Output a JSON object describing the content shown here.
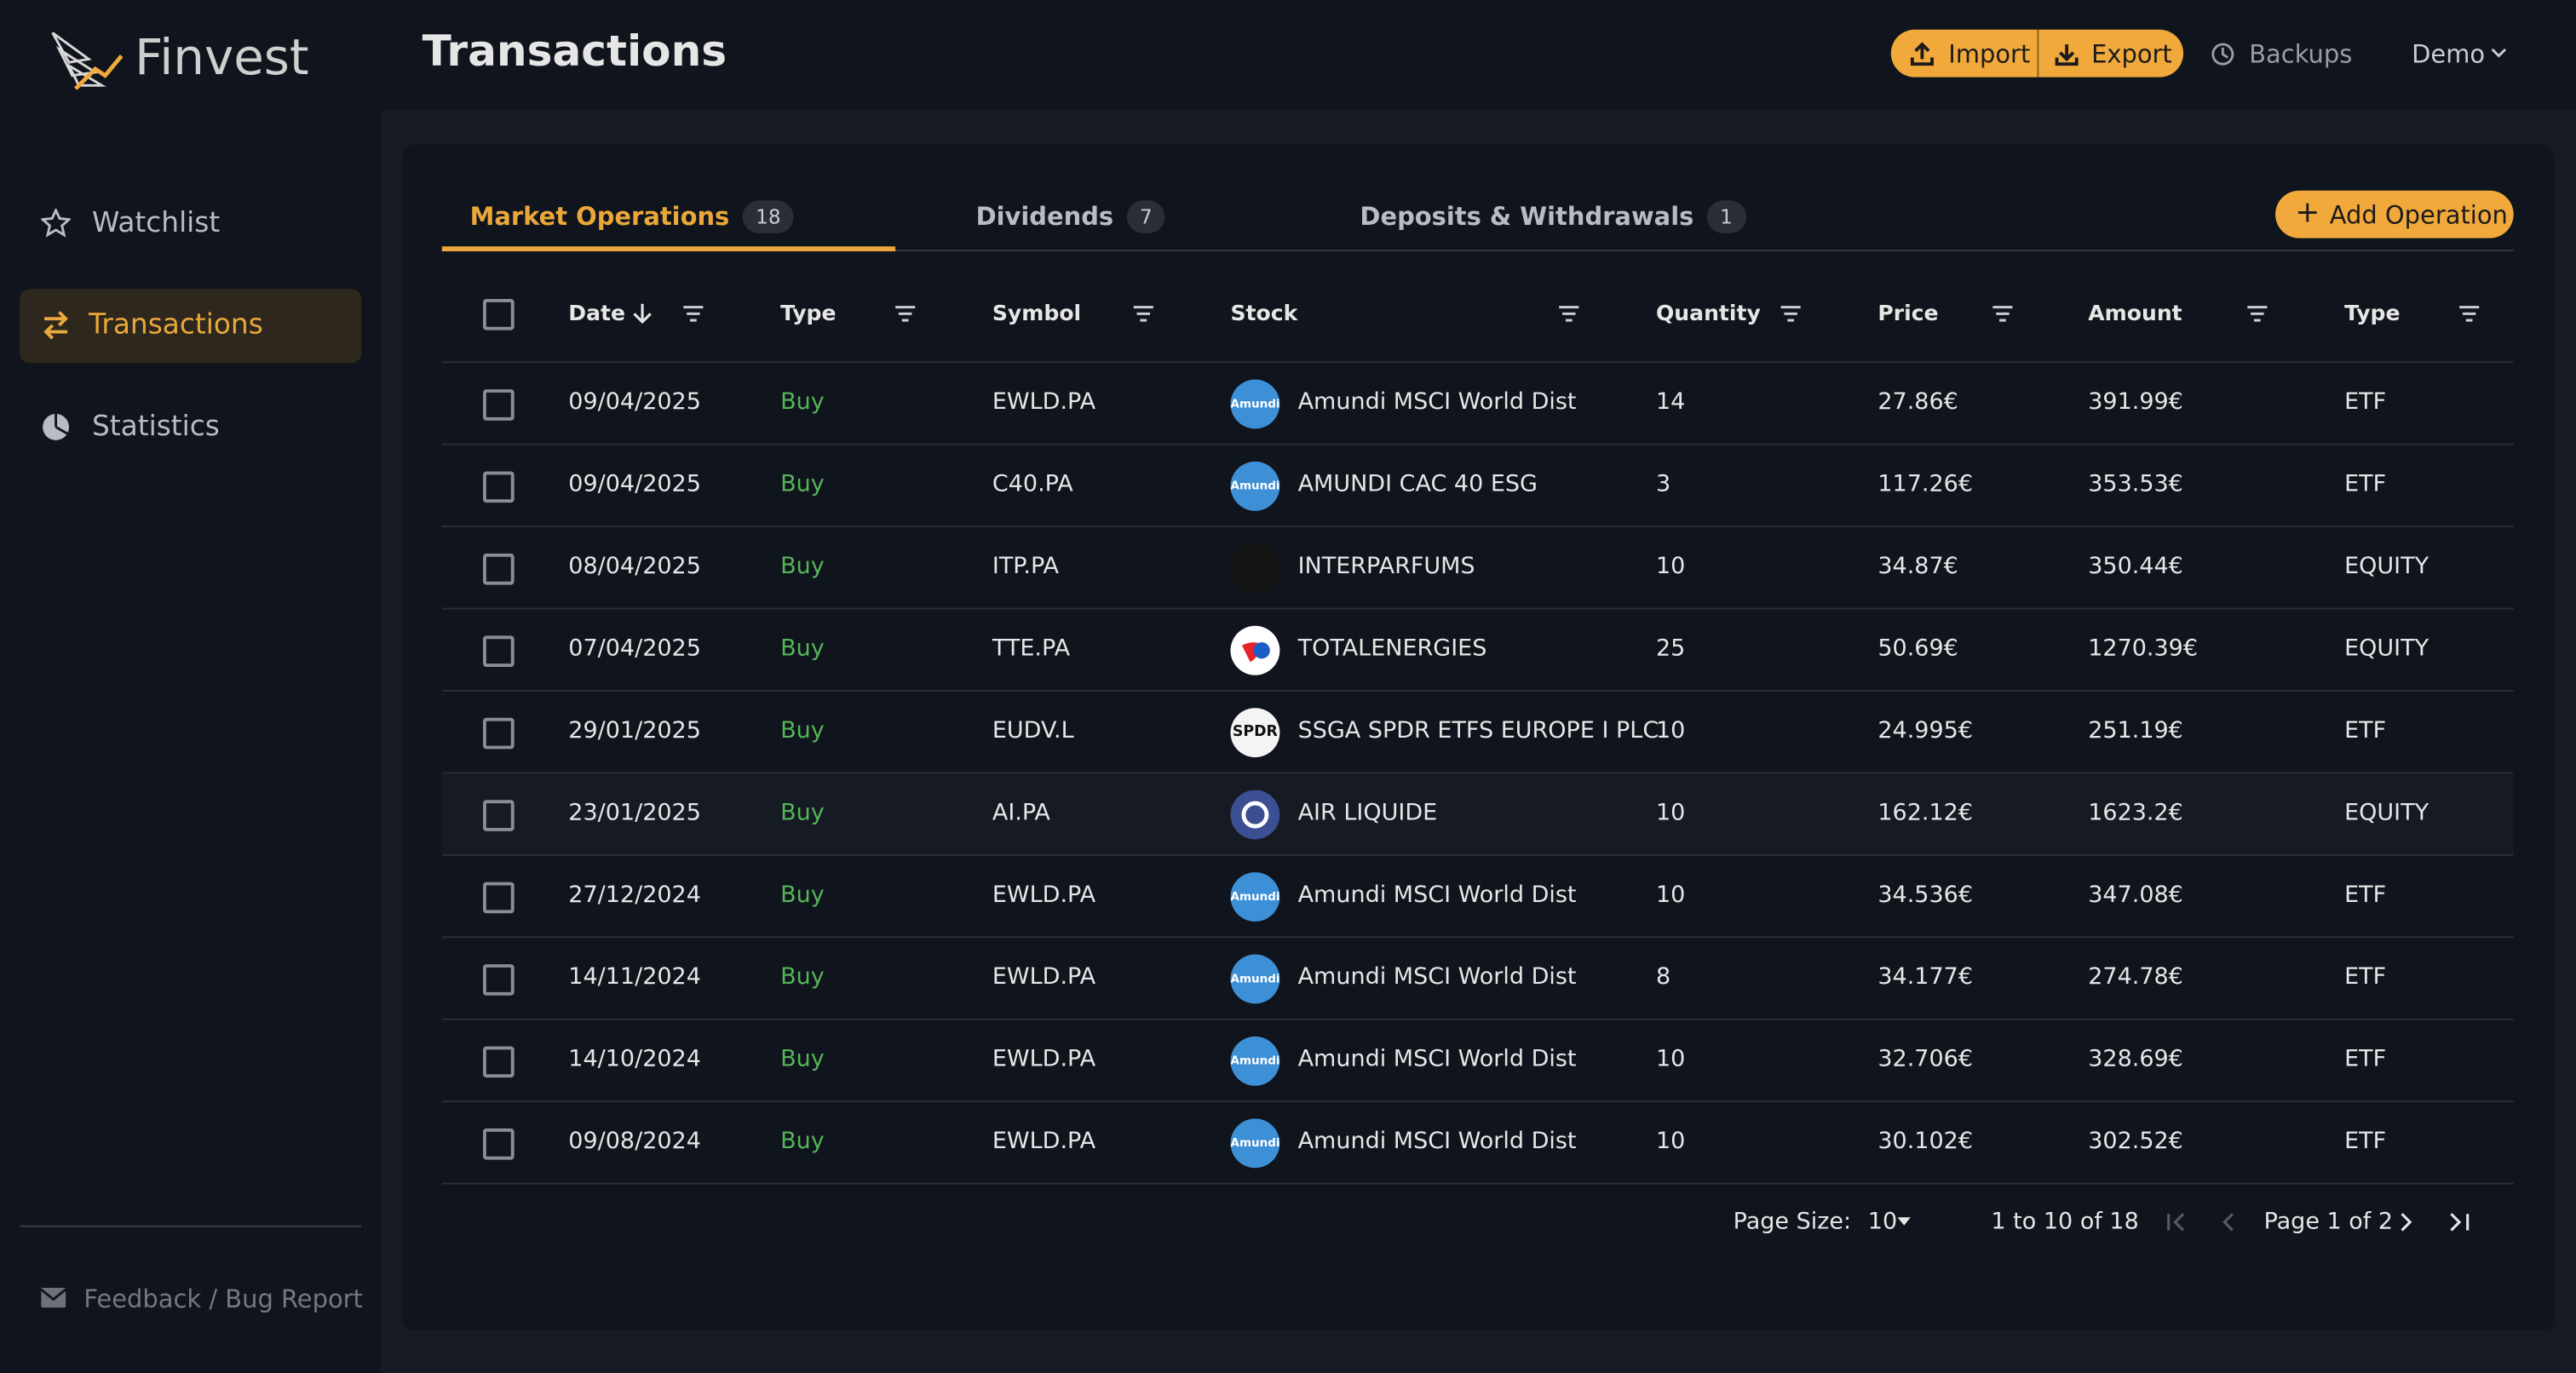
{
  "brand": "Finvest",
  "nav": [
    {
      "label": "Watchlist",
      "active": false
    },
    {
      "label": "Transactions",
      "active": true
    },
    {
      "label": "Statistics",
      "active": false
    }
  ],
  "feedback": "Feedback / Bug Report",
  "header": {
    "title": "Transactions",
    "import": "Import",
    "export": "Export",
    "backups": "Backups",
    "user": "Demo"
  },
  "tabs": [
    {
      "label": "Market Operations",
      "count": "18",
      "active": true
    },
    {
      "label": "Dividends",
      "count": "7",
      "active": false
    },
    {
      "label": "Deposits & Withdrawals",
      "count": "1",
      "active": false
    }
  ],
  "addButton": "Add Operation",
  "table": {
    "columns": [
      "Date",
      "Type",
      "Symbol",
      "Stock",
      "Quantity",
      "Price",
      "Amount",
      "Type"
    ],
    "rows": [
      {
        "date": "09/04/2025",
        "type": "Buy",
        "symbol": "EWLD.PA",
        "logo": "Amundi",
        "logoColor": "#3d8fd6",
        "stock": "Amundi MSCI World Dist",
        "quantity": "14",
        "price": "27.86€",
        "amount": "391.99€",
        "assetType": "ETF"
      },
      {
        "date": "09/04/2025",
        "type": "Buy",
        "symbol": "C40.PA",
        "logo": "Amundi",
        "logoColor": "#3d8fd6",
        "stock": "AMUNDI CAC 40 ESG",
        "quantity": "3",
        "price": "117.26€",
        "amount": "353.53€",
        "assetType": "ETF"
      },
      {
        "date": "08/04/2025",
        "type": "Buy",
        "symbol": "ITP.PA",
        "logoColor": "#141414",
        "stock": "INTERPARFUMS",
        "quantity": "10",
        "price": "34.87€",
        "amount": "350.44€",
        "assetType": "EQUITY"
      },
      {
        "date": "07/04/2025",
        "type": "Buy",
        "symbol": "TTE.PA",
        "logoColor": "#ffffff",
        "stock": "TOTALENERGIES",
        "quantity": "25",
        "price": "50.69€",
        "amount": "1270.39€",
        "assetType": "EQUITY"
      },
      {
        "date": "29/01/2025",
        "type": "Buy",
        "symbol": "EUDV.L",
        "logo": "SPDR",
        "logoColor": "#f4f4f4",
        "stock": "SSGA SPDR ETFS EUROPE I PLC",
        "quantity": "10",
        "price": "24.995€",
        "amount": "251.19€",
        "assetType": "ETF"
      },
      {
        "date": "23/01/2025",
        "type": "Buy",
        "symbol": "AI.PA",
        "logoColor": "#3c4f93",
        "stock": "AIR LIQUIDE",
        "quantity": "10",
        "price": "162.12€",
        "amount": "1623.2€",
        "assetType": "EQUITY"
      },
      {
        "date": "27/12/2024",
        "type": "Buy",
        "symbol": "EWLD.PA",
        "logo": "Amundi",
        "logoColor": "#3d8fd6",
        "stock": "Amundi MSCI World Dist",
        "quantity": "10",
        "price": "34.536€",
        "amount": "347.08€",
        "assetType": "ETF"
      },
      {
        "date": "14/11/2024",
        "type": "Buy",
        "symbol": "EWLD.PA",
        "logo": "Amundi",
        "logoColor": "#3d8fd6",
        "stock": "Amundi MSCI World Dist",
        "quantity": "8",
        "price": "34.177€",
        "amount": "274.78€",
        "assetType": "ETF"
      },
      {
        "date": "14/10/2024",
        "type": "Buy",
        "symbol": "EWLD.PA",
        "logo": "Amundi",
        "logoColor": "#3d8fd6",
        "stock": "Amundi MSCI World Dist",
        "quantity": "10",
        "price": "32.706€",
        "amount": "328.69€",
        "assetType": "ETF"
      },
      {
        "date": "09/08/2024",
        "type": "Buy",
        "symbol": "EWLD.PA",
        "logo": "Amundi",
        "logoColor": "#3d8fd6",
        "stock": "Amundi MSCI World Dist",
        "quantity": "10",
        "price": "30.102€",
        "amount": "302.52€",
        "assetType": "ETF"
      }
    ]
  },
  "pagination": {
    "sizeLabel": "Page Size:",
    "size": "10",
    "range": "1 to 10 of 18",
    "page": "Page 1 of 2"
  }
}
